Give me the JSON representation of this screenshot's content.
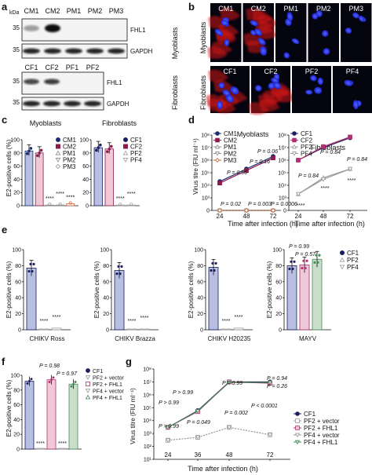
{
  "colors": {
    "cm": "#1a2e6e",
    "cm2": "#8e1b4c",
    "pm": "#8a8a8a",
    "cf": "#1c1f5e",
    "pf": "#9a9a9a",
    "cf2_line": "#b03070",
    "bar_blue": "#b8bfe0",
    "bar_pink": "#f0c9d8",
    "bar_green": "#c9dfcc",
    "micro_bg": "#050510",
    "nuclei": "#3344ff",
    "actin": "#d01818"
  },
  "panels": [
    "a",
    "b",
    "c",
    "d",
    "e",
    "f",
    "g"
  ],
  "a": {
    "kda": "kDa",
    "myo_lanes": [
      "CM1",
      "CM2",
      "PM1",
      "PM2",
      "PM3"
    ],
    "fib_lanes": [
      "CF1",
      "CF2",
      "PF1",
      "PF2"
    ],
    "markers_myo": [
      "35",
      "35"
    ],
    "markers_fib": [
      "35",
      "35"
    ],
    "fhl1": "FHL1",
    "gapdh": "GAPDH",
    "myoblasts": "Myoblasts",
    "fibroblasts": "Fibroblasts"
  },
  "b": {
    "row1": [
      "CM1",
      "CM2",
      "PM1",
      "PM2",
      "PM3"
    ],
    "row2": [
      "CF1",
      "CF2",
      "PF2",
      "PF4"
    ],
    "myoblasts": "Myoblasts",
    "fibroblasts": "Fibroblasts"
  },
  "c": {
    "title_left": "Myoblasts",
    "title_right": "Fibroblasts",
    "ylabel": "E2-positive cells (%)",
    "legend_left": [
      "CM1",
      "CM2",
      "PM1",
      "PM2",
      "PM3"
    ],
    "legend_right": [
      "CF1",
      "CF2",
      "PF2",
      "PF4"
    ],
    "sig": "****",
    "chart_data": {
      "type": "bar",
      "ylim": [
        0,
        100
      ],
      "yticks": [
        "0",
        "20",
        "40",
        "60",
        "80",
        "100"
      ],
      "groups": [
        {
          "name": "Myoblasts",
          "categories": [
            "CM1",
            "CM2",
            "PM1",
            "PM2",
            "PM3"
          ],
          "values": [
            83,
            80,
            1,
            1,
            3
          ]
        },
        {
          "name": "Fibroblasts",
          "categories": [
            "CF1",
            "CF2",
            "PF2",
            "PF4"
          ],
          "values": [
            88,
            86,
            1,
            1
          ]
        }
      ]
    }
  },
  "d": {
    "title_left": "Myoblasts",
    "title_right": "Fibroblasts",
    "ylabel": "Virus titre (FIU ml⁻¹)",
    "xlabel": "Time after infection (h)",
    "xticks": [
      "24",
      "48",
      "72"
    ],
    "yticks": [
      "0",
      "10³",
      "10⁴",
      "10⁵",
      "10⁶",
      "10⁷",
      "10⁸"
    ],
    "legend_left": [
      "CM1",
      "CM2",
      "PM1",
      "PM2",
      "PM3"
    ],
    "legend_right": [
      "CF1",
      "CF2",
      "PF2",
      "PF4"
    ],
    "p_left": [
      "P = 0.56",
      "P = 0.16",
      "P = 0.06",
      "P = 0.02",
      "P = 0.003",
      "P = 0.0006"
    ],
    "p_right": [
      "P = 0.84",
      "P = 0.84",
      "P = 0.84"
    ],
    "sig": "****",
    "chart_data": {
      "type": "line",
      "x": [
        24,
        48,
        72
      ],
      "yscale": "log",
      "series_left": [
        {
          "name": "CM1",
          "values": [
            20000,
            200000,
            2000000
          ]
        },
        {
          "name": "CM2",
          "values": [
            15000,
            150000,
            1500000
          ]
        },
        {
          "name": "PM1",
          "values": [
            0,
            0,
            0
          ]
        },
        {
          "name": "PM2",
          "values": [
            0,
            0,
            0
          ]
        },
        {
          "name": "PM3",
          "values": [
            0,
            0,
            0
          ]
        }
      ],
      "series_right": [
        {
          "name": "CF1",
          "values": [
            1000000,
            10000000,
            60000000
          ]
        },
        {
          "name": "CF2",
          "values": [
            1000000,
            12000000,
            70000000
          ]
        },
        {
          "name": "PF2",
          "values": [
            2000,
            40000,
            200000
          ]
        },
        {
          "name": "PF4",
          "values": [
            2000,
            30000,
            200000
          ]
        }
      ]
    }
  },
  "e": {
    "ylabel": "E2-positive cells (%)",
    "sig": "****",
    "subs": [
      {
        "name": "CHIKV Ross"
      },
      {
        "name": "CHIKV Brazza"
      },
      {
        "name": "CHIKV H20235"
      },
      {
        "name": "MAYV"
      }
    ],
    "legend": [
      "CF1",
      "PF2",
      "PF4"
    ],
    "p_mayv": [
      "P = 0.99",
      "P = 0.57"
    ],
    "chart_data": {
      "type": "bar",
      "categories": [
        "CF1",
        "PF2",
        "PF4"
      ],
      "ylim": [
        0,
        100
      ],
      "yticks": [
        "0",
        "20",
        "40",
        "60",
        "80",
        "100"
      ],
      "series": [
        {
          "name": "CHIKV Ross",
          "values": [
            77,
            1,
            2
          ]
        },
        {
          "name": "CHIKV Brazza",
          "values": [
            74,
            1,
            1
          ]
        },
        {
          "name": "CHIKV H20235",
          "values": [
            78,
            1,
            2
          ]
        },
        {
          "name": "MAYV",
          "values": [
            80,
            81,
            88
          ]
        }
      ]
    }
  },
  "f": {
    "ylabel": "E2-positive cells (%)",
    "legend": [
      "CF1",
      "PF2 + vector",
      "PF2 + FHL1",
      "PF4 + vector",
      "PF4 + FHL1"
    ],
    "p": [
      "P = 0.98",
      "P = 0.97"
    ],
    "sig": "****",
    "chart_data": {
      "type": "bar",
      "categories": [
        "CF1",
        "PF2 + vector",
        "PF2 + FHL1",
        "PF4 + vector",
        "PF4 + FHL1"
      ],
      "values": [
        92,
        1,
        94,
        1,
        88
      ],
      "ylim": [
        0,
        100
      ],
      "yticks": [
        "0",
        "20",
        "40",
        "60",
        "80",
        "100"
      ]
    }
  },
  "g": {
    "ylabel": "Virus titre (FIU ml⁻¹)",
    "xlabel": "Time after infection (h)",
    "xticks": [
      "24",
      "36",
      "48",
      "72"
    ],
    "yticks": [
      "10¹",
      "10²",
      "10³",
      "10⁴",
      "10⁵",
      "10⁶",
      "10⁷",
      "10⁸"
    ],
    "legend": [
      "CF1",
      "PF2 + vector",
      "PF2 + FHL1",
      "PF4 + vector",
      "PF4 + FHL1"
    ],
    "p": [
      "P > 0.99",
      "P > 0.99",
      "P = 0.99",
      "P = 0.94",
      "P = 0.26",
      "P > 0.99",
      "P = 0.049",
      "P = 0.002",
      "P < 0.0001"
    ],
    "chart_data": {
      "type": "line",
      "x": [
        24,
        36,
        48,
        72
      ],
      "yscale": "log",
      "series": [
        {
          "name": "CF1",
          "values": [
            3000,
            60000,
            10000000,
            10000000
          ]
        },
        {
          "name": "PF2 + vector",
          "values": [
            300,
            500,
            3000,
            800
          ]
        },
        {
          "name": "PF2 + FHL1",
          "values": [
            3000,
            50000,
            10000000,
            8000000
          ]
        },
        {
          "name": "PF4 + vector",
          "values": [
            300,
            500,
            3000,
            800
          ]
        },
        {
          "name": "PF4 + FHL1",
          "values": [
            3000,
            55000,
            9000000,
            9000000
          ]
        }
      ]
    }
  }
}
